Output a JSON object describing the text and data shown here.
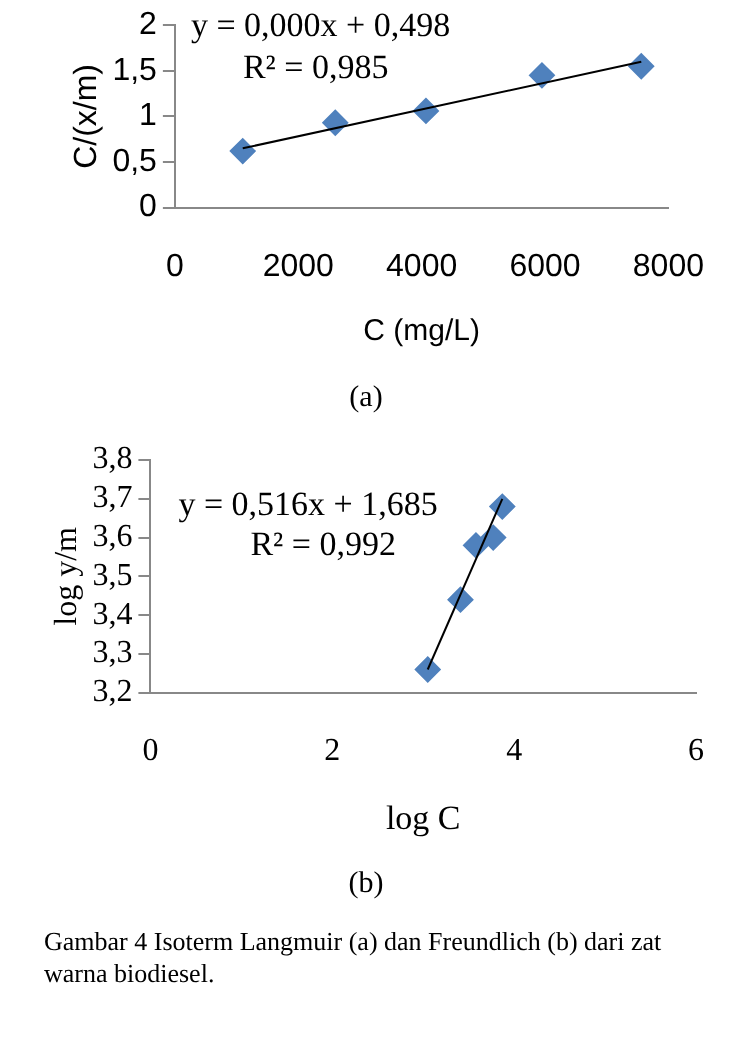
{
  "chart_data": [
    {
      "type": "scatter",
      "xlabel": "C (mg/L)",
      "ylabel": "C/(x/m)",
      "xlim": [
        0,
        8000
      ],
      "xticks": [
        0,
        2000,
        4000,
        6000,
        8000
      ],
      "ylim": [
        0,
        2
      ],
      "yticks": [
        0,
        {
          "value": 0.5,
          "label": "0,5"
        },
        1,
        {
          "value": 1.5,
          "label": "1,5"
        },
        2
      ],
      "grid": false,
      "legend": false,
      "series": [
        {
          "marker": "diamond",
          "color": "#4f81bd",
          "x": [
            1100,
            2600,
            4070,
            5950,
            7560
          ],
          "values": [
            0.62,
            0.93,
            1.06,
            1.45,
            1.55
          ]
        },
        {
          "type": "line",
          "color": "#000000",
          "x": [
            1100,
            7560
          ],
          "values": [
            0.65,
            1.6
          ]
        }
      ],
      "annotations": [
        "y = 0,000x + 0,498",
        "R² = 0,985",
        "(a)"
      ]
    },
    {
      "type": "scatter",
      "xlabel": "log C",
      "ylabel": "log y/m",
      "xlim": [
        0,
        6
      ],
      "xticks": [
        0,
        2,
        4,
        6
      ],
      "ylim": [
        3.2,
        3.8
      ],
      "yticks": [
        {
          "value": 3.2,
          "label": "3,2"
        },
        {
          "value": 3.3,
          "label": "3,3"
        },
        {
          "value": 3.4,
          "label": "3,4"
        },
        {
          "value": 3.5,
          "label": "3,5"
        },
        {
          "value": 3.6,
          "label": "3,6"
        },
        {
          "value": 3.7,
          "label": "3,7"
        },
        {
          "value": 3.8,
          "label": "3,8"
        }
      ],
      "grid": false,
      "legend": false,
      "series": [
        {
          "marker": "diamond",
          "color": "#4f81bd",
          "x": [
            3.05,
            3.41,
            3.58,
            3.77,
            3.87
          ],
          "values": [
            3.26,
            3.44,
            3.58,
            3.6,
            3.68
          ]
        },
        {
          "type": "line",
          "color": "#000000",
          "x": [
            3.05,
            3.87
          ],
          "values": [
            3.26,
            3.7
          ]
        }
      ],
      "annotations": [
        "y = 0,516x + 1,685",
        "R² = 0,992",
        "(b)",
        "Gambar 4    Isoterm Langmuir (a) dan Freundlich (b) dari zat warna biodiesel."
      ]
    }
  ]
}
